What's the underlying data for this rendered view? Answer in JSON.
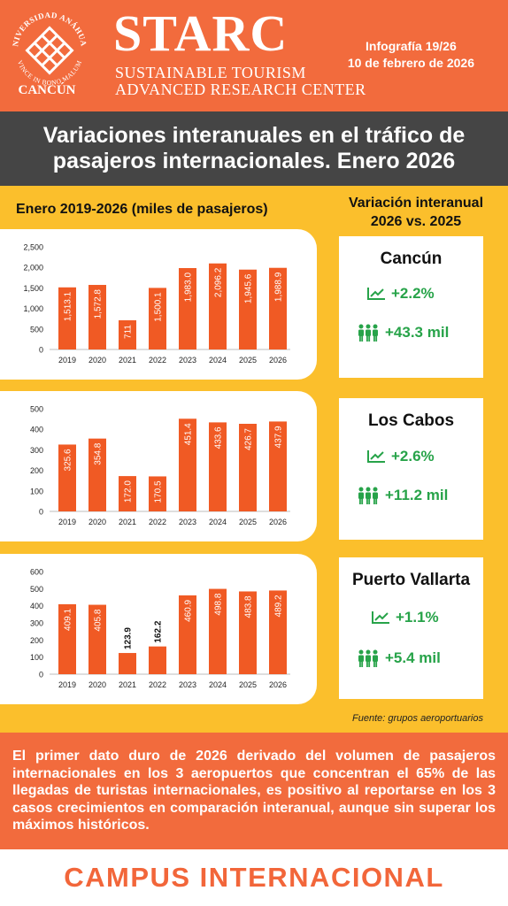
{
  "header": {
    "university_name": "UNIVERSIDAD ANÁHUAC",
    "university_motto": "VINCE IN BONO MALUM",
    "campus": "CANCÚN",
    "brand": "STARC",
    "brand_line1": "SUSTAINABLE TOURISM",
    "brand_line2": "ADVANCED RESEARCH CENTER",
    "infografia": "Infografía 19/26",
    "date": "10 de febrero de 2026"
  },
  "title": {
    "line1": "Variaciones interanuales en el tráfico de",
    "line2": "pasajeros internacionales. Enero 2026"
  },
  "left_heading": "Enero 2019-2026 (miles de pasajeros)",
  "right_heading": {
    "line1": "Variación interanual",
    "line2": "2026 vs. 2025"
  },
  "colors": {
    "header": "#f26b3d",
    "background": "#fbbf2c",
    "bar": "#f05a24",
    "positive": "#27a349",
    "title_bar": "#454545"
  },
  "chart_data": [
    {
      "type": "bar",
      "categories": [
        "2019",
        "2020",
        "2021",
        "2022",
        "2023",
        "2024",
        "2025",
        "2026"
      ],
      "values": [
        1513.1,
        1572.8,
        711,
        1500.1,
        1983.0,
        2096.2,
        1945.6,
        1988.9
      ],
      "labels": [
        "1,513.1",
        "1,572.8",
        "711",
        "1,500.1",
        "1,983.0",
        "2,096.2",
        "1,945.6",
        "1,988.9"
      ],
      "ylim": [
        0,
        2500
      ],
      "yticks": [
        0,
        500,
        1000,
        1500,
        2000,
        2500
      ],
      "ytick_labels": [
        "0",
        "500",
        "1,000",
        "1,500",
        "2,000",
        "2,500"
      ],
      "label_position": [
        "inside",
        "inside",
        "inside",
        "inside",
        "inside",
        "inside",
        "inside",
        "inside"
      ],
      "grid": false
    },
    {
      "type": "bar",
      "categories": [
        "2019",
        "2020",
        "2021",
        "2022",
        "2023",
        "2024",
        "2025",
        "2026"
      ],
      "values": [
        325.6,
        354.8,
        172.0,
        170.5,
        451.4,
        433.6,
        426.7,
        437.9
      ],
      "labels": [
        "325.6",
        "354.8",
        "172.0",
        "170.5",
        "451.4",
        "433.6",
        "426.7",
        "437.9"
      ],
      "ylim": [
        0,
        500
      ],
      "yticks": [
        0,
        100,
        200,
        300,
        400,
        500
      ],
      "ytick_labels": [
        "0",
        "100",
        "200",
        "300",
        "400",
        "500"
      ],
      "label_position": [
        "inside",
        "inside",
        "inside",
        "inside",
        "inside",
        "inside",
        "inside",
        "inside"
      ],
      "grid": false
    },
    {
      "type": "bar",
      "categories": [
        "2019",
        "2020",
        "2021",
        "2022",
        "2023",
        "2024",
        "2025",
        "2026"
      ],
      "values": [
        409.1,
        405.8,
        123.9,
        162.2,
        460.9,
        498.8,
        483.8,
        489.2
      ],
      "labels": [
        "409.1",
        "405.8",
        "123.9",
        "162.2",
        "460.9",
        "498.8",
        "483.8",
        "489.2"
      ],
      "ylim": [
        0,
        600
      ],
      "yticks": [
        0,
        100,
        200,
        300,
        400,
        500,
        600
      ],
      "ytick_labels": [
        "0",
        "100",
        "200",
        "300",
        "400",
        "500",
        "600"
      ],
      "label_position": [
        "inside",
        "inside",
        "above",
        "above",
        "inside",
        "inside",
        "inside",
        "inside"
      ],
      "grid": false
    }
  ],
  "airports": [
    {
      "name": "Cancún",
      "pct": "+2.2%",
      "abs": "+43.3 mil"
    },
    {
      "name": "Los Cabos",
      "pct": "+2.6%",
      "abs": "+11.2 mil"
    },
    {
      "name": "Puerto Vallarta",
      "pct": "+1.1%",
      "abs": "+5.4 mil"
    }
  ],
  "icons": {
    "trend": "trend-up-icon",
    "people": "people-group-icon"
  },
  "source": "Fuente: grupos aeroportuarios",
  "summary": "El primer dato duro de 2026 derivado del volumen de pasajeros internacionales en los 3 aeropuertos que concentran el 65% de las llegadas de turistas internacionales, es positivo al reportarse en los 3 casos crecimientos en comparación interanual, aunque sin superar los máximos históricos.",
  "footer": "CAMPUS INTERNACIONAL"
}
